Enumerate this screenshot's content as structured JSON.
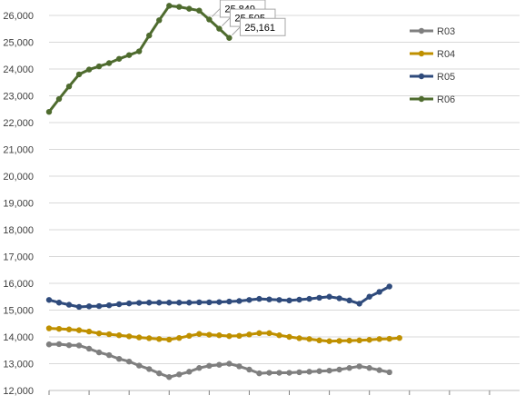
{
  "chart_data": {
    "type": "line",
    "title": "",
    "xlabel": "",
    "ylabel": "",
    "ylim": [
      12000,
      26000
    ],
    "yticks": [
      12000,
      13000,
      14000,
      15000,
      16000,
      17000,
      18000,
      19000,
      20000,
      21000,
      22000,
      23000,
      24000,
      25000,
      26000
    ],
    "ytick_labels": [
      "12,000",
      "13,000",
      "14,000",
      "15,000",
      "16,000",
      "17,000",
      "18,000",
      "19,000",
      "20,000",
      "21,000",
      "22,000",
      "23,000",
      "24,000",
      "25,000",
      "26,000"
    ],
    "x_count": 48,
    "xtick_every": 4,
    "grid": true,
    "legend_position": "right",
    "series": [
      {
        "name": "R03",
        "color": "#7f7f7f",
        "values": [
          13720,
          13730,
          13690,
          13680,
          13560,
          13420,
          13320,
          13180,
          13080,
          12930,
          12800,
          12640,
          12500,
          12600,
          12700,
          12840,
          12920,
          12960,
          13000,
          12900,
          12780,
          12640,
          12660,
          12660,
          12660,
          12680,
          12700,
          12720,
          12740,
          12780,
          12840,
          12900,
          12840,
          12760,
          12680
        ]
      },
      {
        "name": "R04",
        "color": "#bf9000",
        "values": [
          14320,
          14300,
          14280,
          14250,
          14200,
          14130,
          14100,
          14060,
          14020,
          13980,
          13950,
          13920,
          13900,
          13960,
          14040,
          14110,
          14080,
          14060,
          14030,
          14040,
          14090,
          14140,
          14140,
          14060,
          14000,
          13950,
          13920,
          13870,
          13840,
          13850,
          13860,
          13870,
          13890,
          13920,
          13930,
          13960
        ]
      },
      {
        "name": "R05",
        "color": "#2f4b7c",
        "values": [
          15380,
          15280,
          15200,
          15120,
          15140,
          15150,
          15180,
          15220,
          15250,
          15270,
          15280,
          15280,
          15280,
          15280,
          15280,
          15290,
          15290,
          15300,
          15320,
          15340,
          15380,
          15420,
          15400,
          15380,
          15360,
          15390,
          15420,
          15460,
          15500,
          15440,
          15360,
          15240,
          15500,
          15680,
          15880
        ]
      },
      {
        "name": "R06",
        "color": "#4e6b2e",
        "values": [
          22400,
          22880,
          23350,
          23800,
          23980,
          24100,
          24220,
          24380,
          24520,
          24660,
          25250,
          25820,
          26360,
          26320,
          26250,
          26180,
          25849,
          25505,
          25161
        ]
      }
    ],
    "annotations": [
      {
        "series": "R06",
        "index": 16,
        "label": "25,849"
      },
      {
        "series": "R06",
        "index": 17,
        "label": "25,505"
      },
      {
        "series": "R06",
        "index": 18,
        "label": "25,161"
      }
    ]
  }
}
